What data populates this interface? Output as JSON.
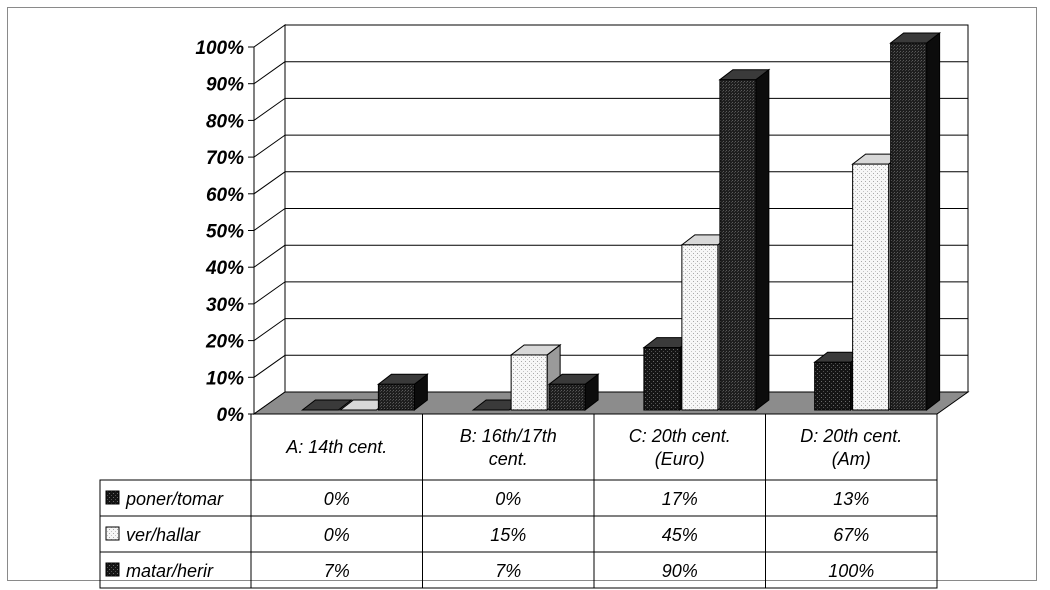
{
  "chart_data": {
    "type": "bar",
    "title": "",
    "xlabel": "",
    "ylabel": "",
    "ylim": [
      0,
      100
    ],
    "y_unit": "%",
    "grid": true,
    "legend": "left of data table",
    "y_ticks": [
      "0%",
      "10%",
      "20%",
      "30%",
      "40%",
      "50%",
      "60%",
      "70%",
      "80%",
      "90%",
      "100%"
    ],
    "categories": [
      [
        "A: 14th cent."
      ],
      [
        "B: 16th/17th",
        "cent."
      ],
      [
        "C: 20th cent.",
        "(Euro)"
      ],
      [
        "D: 20th cent.",
        "(Am)"
      ]
    ],
    "series": [
      {
        "name": "poner/tomar",
        "values": [
          0,
          0,
          17,
          13
        ],
        "labels": [
          "0%",
          "0%",
          "17%",
          "13%"
        ],
        "color": "#1a1a1a",
        "pattern": "dark-dots"
      },
      {
        "name": "ver/hallar",
        "values": [
          0,
          15,
          45,
          67
        ],
        "labels": [
          "0%",
          "15%",
          "45%",
          "67%"
        ],
        "color": "#f2f2f2",
        "pattern": "light-dots"
      },
      {
        "name": "matar/herir",
        "values": [
          7,
          7,
          90,
          100
        ],
        "labels": [
          "7%",
          "7%",
          "90%",
          "100%"
        ],
        "color": "#222222",
        "pattern": "dark-grain"
      }
    ]
  }
}
